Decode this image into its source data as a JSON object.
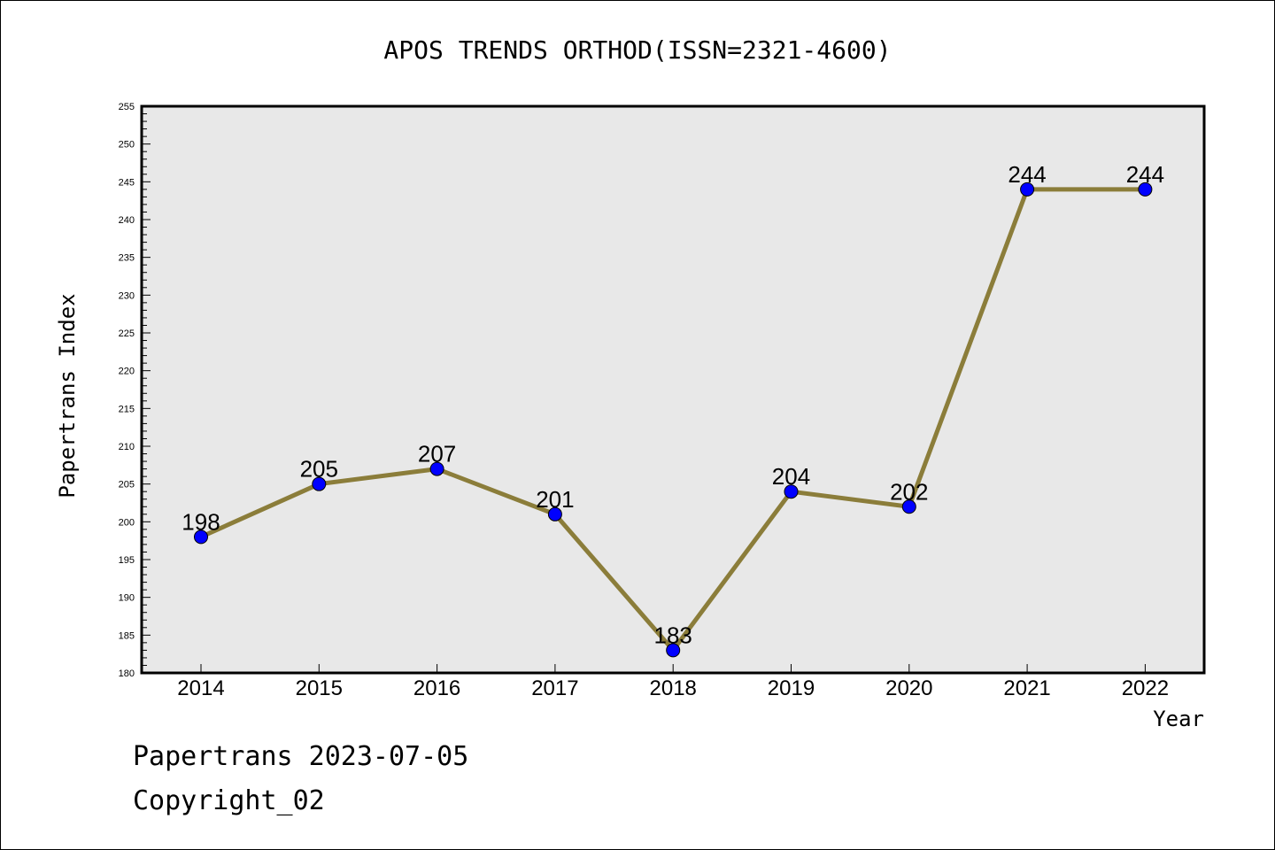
{
  "footer": {
    "line1": "Papertrans 2023-07-05",
    "line2": "Copyright_02"
  },
  "chart_data": {
    "type": "line",
    "title": "APOS TRENDS ORTHOD(ISSN=2321-4600)",
    "xlabel": "Year",
    "ylabel": "Papertrans Index",
    "x": [
      "2014",
      "2015",
      "2016",
      "2017",
      "2018",
      "2019",
      "2020",
      "2021",
      "2022"
    ],
    "series": [
      {
        "values": [
          198,
          205,
          207,
          201,
          183,
          204,
          202,
          244,
          244
        ],
        "data_labels": [
          "198",
          "205",
          "207",
          "201",
          "183",
          "204",
          "202",
          "244",
          "244"
        ]
      }
    ],
    "ylim": [
      180,
      255
    ],
    "yticks": [
      180,
      185,
      190,
      195,
      200,
      205,
      210,
      215,
      220,
      225,
      230,
      235,
      240,
      245,
      250,
      255
    ],
    "colors": {
      "line": "#8B7D3A",
      "marker": "#0000FF",
      "plot_background": "#E8E8E8",
      "axis": "#000000"
    },
    "grid": false,
    "legend": "none"
  }
}
